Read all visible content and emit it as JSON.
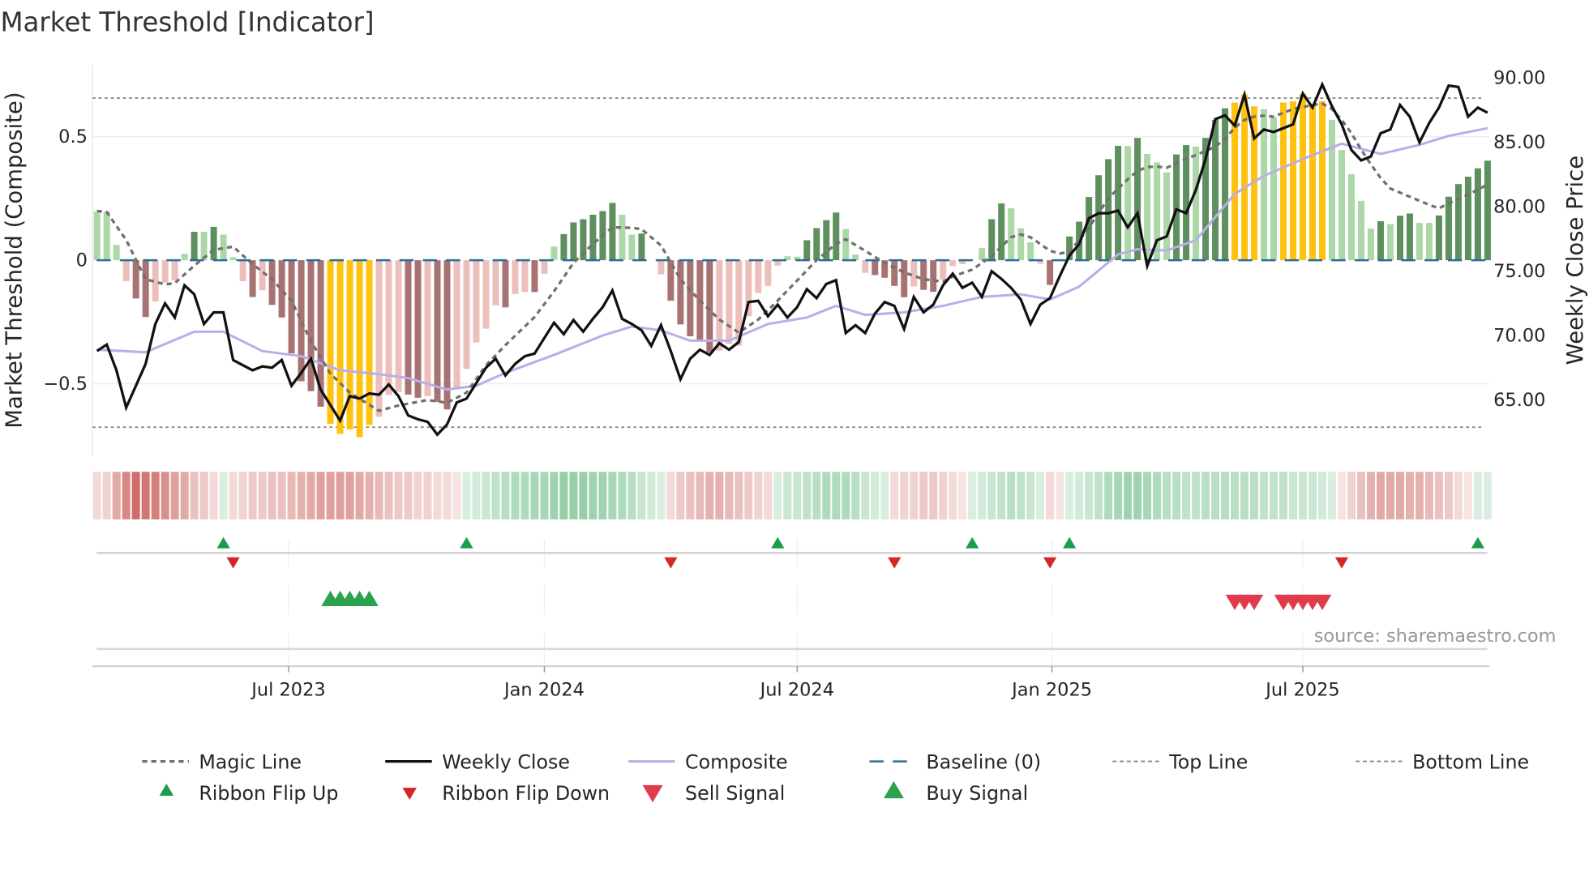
{
  "chart_data": {
    "type": "bar",
    "title": "Market Threshold [Indicator]",
    "ylabel_left": "Market Threshold (Composite)",
    "ylabel_right": "Weekly Close Price",
    "source": "source: sharemaestro.com",
    "weeks": 144,
    "ylim_left": [
      -0.8,
      0.79
    ],
    "ylim_right": [
      59.5,
      91.5
    ],
    "yticks_left": [
      {
        "v": 0.5,
        "label": "0.5"
      },
      {
        "v": 0,
        "label": "0"
      },
      {
        "v": -0.5,
        "label": "−0.5"
      }
    ],
    "yticks_right": [
      {
        "v": 90,
        "label": "90.00"
      },
      {
        "v": 85,
        "label": "85.00"
      },
      {
        "v": 80,
        "label": "80.00"
      },
      {
        "v": 75,
        "label": "75.00"
      },
      {
        "v": 70,
        "label": "70.00"
      },
      {
        "v": 65,
        "label": "65.00"
      }
    ],
    "xticks": [
      {
        "week": 20.7,
        "label": "Jul 2023"
      },
      {
        "week": 47.0,
        "label": "Jan 2024"
      },
      {
        "week": 73.0,
        "label": "Jul 2024"
      },
      {
        "week": 99.2,
        "label": "Jan 2025"
      },
      {
        "week": 125.0,
        "label": "Jul 2025"
      }
    ],
    "top_line": 0.656,
    "bottom_line": -0.676,
    "baseline": 0,
    "colors": {
      "G": "#5e8f5e",
      "g": "#acd8a8",
      "R": "#a87272",
      "r": "#ecbfbb",
      "Y": "#ffc20e",
      "n": "#ffffff",
      "ribbon_up": "#4dae6b",
      "ribbon_down": "#c4504c",
      "flip_up": "#1a9c4a",
      "flip_down": "#d62728",
      "buy": "#2ca24c",
      "sell": "#e03b4b",
      "magic": "#707070",
      "close": "#111111",
      "composite": "#b9aee8",
      "baseline": "#2b6e96",
      "limits": "#8a8a8a"
    },
    "composite_bars": [
      0.197,
      0.197,
      0.062,
      -0.085,
      -0.155,
      -0.23,
      -0.167,
      -0.09,
      -0.082,
      0.026,
      0.115,
      0.115,
      0.135,
      0.104,
      0.012,
      -0.085,
      -0.149,
      -0.122,
      -0.181,
      -0.232,
      -0.377,
      -0.49,
      -0.53,
      -0.593,
      -0.663,
      -0.703,
      -0.685,
      -0.716,
      -0.667,
      -0.634,
      -0.546,
      -0.533,
      -0.544,
      -0.557,
      -0.55,
      -0.574,
      -0.604,
      -0.517,
      -0.44,
      -0.333,
      -0.277,
      -0.183,
      -0.191,
      -0.137,
      -0.129,
      -0.129,
      -0.055,
      0.055,
      0.106,
      0.153,
      0.166,
      0.184,
      0.199,
      0.232,
      0.184,
      0.104,
      0.108,
      0,
      -0.057,
      -0.164,
      -0.26,
      -0.308,
      -0.326,
      -0.372,
      -0.366,
      -0.339,
      -0.346,
      -0.227,
      -0.133,
      -0.104,
      -0.022,
      0.016,
      0.014,
      0.081,
      0.13,
      0.162,
      0.193,
      0.127,
      0.023,
      -0.051,
      -0.06,
      -0.071,
      -0.104,
      -0.15,
      -0.106,
      -0.12,
      -0.128,
      -0.079,
      -0.024,
      -0.016,
      0,
      0.049,
      0.166,
      0.23,
      0.21,
      0.129,
      0.072,
      -0.014,
      -0.1,
      0,
      0.096,
      0.156,
      0.256,
      0.344,
      0.409,
      0.463,
      0.462,
      0.495,
      0.43,
      0.396,
      0.356,
      0.428,
      0.466,
      0.46,
      0.495,
      0.568,
      0.615,
      0.638,
      0.671,
      0.623,
      0.611,
      0.579,
      0.638,
      0.643,
      0.672,
      0.625,
      0.643,
      0.568,
      0.446,
      0.348,
      0.24,
      0.128,
      0.158,
      0.146,
      0.18,
      0.189,
      0.151,
      0.151,
      0.181,
      0.257,
      0.308,
      0.338,
      0.372,
      0.403
    ],
    "bar_classes": "gggrRRrrrgGgGggrRrRRRRRRYYYYYrrrRRrRRrrrrrRrrRrgGGGGGGggGnrRRRRRrrrrrrrggGGGGggrRRRRrRRrrrngGGgggrRnGGGGGGgGgggGGgGGGYYYggYYYYYgggggGgGGggGGGGGG",
    "weekly_close": [
      68.8,
      69.3,
      67.3,
      64.4,
      66.1,
      67.8,
      70.9,
      72.5,
      71.4,
      73.9,
      73.2,
      70.9,
      71.8,
      71.8,
      68.1,
      67.7,
      67.3,
      67.6,
      67.5,
      68.1,
      66.1,
      67.1,
      68.2,
      65.8,
      64.6,
      63.4,
      65.3,
      65.1,
      65.5,
      65.4,
      66.2,
      65.3,
      63.8,
      63.5,
      63.3,
      62.3,
      63.1,
      64.8,
      65.1,
      66.3,
      67.5,
      68.2,
      66.9,
      67.8,
      68.4,
      68.6,
      69.8,
      71.0,
      70.1,
      71.2,
      70.3,
      71.3,
      72.2,
      73.5,
      71.3,
      70.9,
      70.4,
      69.2,
      70.8,
      68.8,
      66.6,
      68.2,
      68.9,
      68.5,
      69.4,
      68.9,
      69.5,
      72.6,
      72.7,
      71.5,
      72.4,
      71.4,
      72.2,
      73.6,
      72.9,
      74.0,
      74.3,
      70.2,
      70.8,
      70.2,
      71.7,
      72.6,
      72.3,
      70.5,
      73.0,
      71.8,
      72.4,
      73.9,
      74.8,
      73.7,
      74.1,
      73.0,
      75.0,
      74.4,
      73.7,
      72.8,
      70.9,
      72.4,
      72.9,
      74.6,
      76.2,
      77.1,
      79.1,
      79.5,
      79.5,
      79.7,
      78.4,
      79.5,
      75.4,
      77.4,
      77.7,
      79.8,
      79.5,
      81.3,
      83.7,
      86.8,
      87.1,
      86.3,
      88.7,
      85.3,
      86.0,
      85.8,
      86.1,
      86.4,
      88.8,
      87.7,
      89.5,
      87.8,
      86.4,
      84.4,
      83.6,
      83.9,
      85.7,
      86.0,
      87.9,
      87.0,
      85.0,
      86.5,
      87.7,
      89.4,
      89.3,
      87.0,
      87.7,
      87.3
    ],
    "magic_line": [
      [
        1,
        0.199
      ],
      [
        2,
        0.195
      ],
      [
        4,
        0.082
      ],
      [
        6,
        -0.077
      ],
      [
        8,
        -0.098
      ],
      [
        9,
        -0.093
      ],
      [
        11,
        -0.022
      ],
      [
        13,
        0.042
      ],
      [
        15,
        0.055
      ],
      [
        17,
        -0.016
      ],
      [
        19,
        -0.077
      ],
      [
        21,
        -0.164
      ],
      [
        23,
        -0.328
      ],
      [
        25,
        -0.459
      ],
      [
        27,
        -0.536
      ],
      [
        30,
        -0.61
      ],
      [
        32,
        -0.588
      ],
      [
        35,
        -0.566
      ],
      [
        37,
        -0.577
      ],
      [
        39,
        -0.536
      ],
      [
        41,
        -0.426
      ],
      [
        43,
        -0.344
      ],
      [
        46,
        -0.23
      ],
      [
        48,
        -0.126
      ],
      [
        50,
        -0.011
      ],
      [
        52,
        0.066
      ],
      [
        54,
        0.133
      ],
      [
        56,
        0.131
      ],
      [
        57,
        0.126
      ],
      [
        59,
        0.06
      ],
      [
        61,
        -0.077
      ],
      [
        63,
        -0.164
      ],
      [
        65,
        -0.24
      ],
      [
        67,
        -0.293
      ],
      [
        69,
        -0.24
      ],
      [
        71,
        -0.164
      ],
      [
        73,
        -0.082
      ],
      [
        75,
        0
      ],
      [
        77,
        0.066
      ],
      [
        78,
        0.085
      ],
      [
        80,
        0.038
      ],
      [
        82,
        -0.011
      ],
      [
        84,
        -0.049
      ],
      [
        86,
        -0.077
      ],
      [
        88,
        -0.087
      ],
      [
        89,
        -0.066
      ],
      [
        91,
        -0.038
      ],
      [
        93,
        0.016
      ],
      [
        95,
        0.093
      ],
      [
        96,
        0.104
      ],
      [
        97,
        0.093
      ],
      [
        99,
        0.038
      ],
      [
        100,
        0.027
      ],
      [
        101,
        0.033
      ],
      [
        103,
        0.131
      ],
      [
        105,
        0.251
      ],
      [
        107,
        0.328
      ],
      [
        108,
        0.361
      ],
      [
        109,
        0.377
      ],
      [
        110,
        0.379
      ],
      [
        111,
        0.374
      ],
      [
        112,
        0.393
      ],
      [
        114,
        0.426
      ],
      [
        116,
        0.459
      ],
      [
        117,
        0.492
      ],
      [
        118,
        0.536
      ],
      [
        119,
        0.568
      ],
      [
        120,
        0.581
      ],
      [
        121,
        0.585
      ],
      [
        122,
        0.581
      ],
      [
        124,
        0.612
      ],
      [
        126,
        0.628
      ],
      [
        127,
        0.634
      ],
      [
        128,
        0.612
      ],
      [
        129,
        0.568
      ],
      [
        130,
        0.514
      ],
      [
        131,
        0.448
      ],
      [
        132,
        0.388
      ],
      [
        133,
        0.333
      ],
      [
        134,
        0.29
      ],
      [
        136,
        0.257
      ],
      [
        138,
        0.224
      ],
      [
        139,
        0.21
      ],
      [
        140,
        0.23
      ],
      [
        142,
        0.265
      ],
      [
        144,
        0.306
      ]
    ],
    "composite_line": [
      [
        1,
        68.9
      ],
      [
        6,
        68.7
      ],
      [
        11,
        70.3
      ],
      [
        14,
        70.3
      ],
      [
        18,
        68.8
      ],
      [
        22,
        68.4
      ],
      [
        26,
        67.3
      ],
      [
        30,
        67.0
      ],
      [
        33,
        66.7
      ],
      [
        37,
        65.8
      ],
      [
        40,
        66.1
      ],
      [
        43,
        67.1
      ],
      [
        48,
        68.5
      ],
      [
        53,
        70.0
      ],
      [
        56,
        70.7
      ],
      [
        59,
        70.4
      ],
      [
        62,
        69.6
      ],
      [
        66,
        69.6
      ],
      [
        70,
        70.9
      ],
      [
        74,
        71.4
      ],
      [
        77,
        72.3
      ],
      [
        80,
        71.6
      ],
      [
        84,
        71.8
      ],
      [
        88,
        72.3
      ],
      [
        92,
        73.0
      ],
      [
        96,
        73.2
      ],
      [
        99,
        72.8
      ],
      [
        102,
        73.8
      ],
      [
        106,
        76.3
      ],
      [
        108,
        76.7
      ],
      [
        111,
        76.6
      ],
      [
        114,
        77.4
      ],
      [
        118,
        81.0
      ],
      [
        121,
        82.4
      ],
      [
        125,
        83.7
      ],
      [
        129,
        84.9
      ],
      [
        133,
        84.1
      ],
      [
        137,
        84.8
      ],
      [
        140,
        85.5
      ],
      [
        144,
        86.1
      ]
    ],
    "ribbon": [
      -0.2,
      -0.25,
      -0.5,
      -0.7,
      -0.85,
      -0.8,
      -0.75,
      -0.65,
      -0.55,
      -0.5,
      -0.35,
      -0.3,
      -0.2,
      0.2,
      -0.2,
      -0.25,
      -0.3,
      -0.3,
      -0.35,
      -0.35,
      -0.4,
      -0.45,
      -0.5,
      -0.55,
      -0.55,
      -0.55,
      -0.55,
      -0.5,
      -0.45,
      -0.4,
      -0.35,
      -0.3,
      -0.3,
      -0.25,
      -0.25,
      -0.2,
      -0.2,
      -0.15,
      0.2,
      0.25,
      0.3,
      0.35,
      0.4,
      0.45,
      0.45,
      0.5,
      0.5,
      0.55,
      0.6,
      0.6,
      0.6,
      0.55,
      0.55,
      0.5,
      0.45,
      0.4,
      0.3,
      0.25,
      0.2,
      -0.2,
      -0.3,
      -0.35,
      -0.4,
      -0.45,
      -0.45,
      -0.4,
      -0.35,
      -0.3,
      -0.25,
      -0.2,
      0.2,
      0.3,
      0.3,
      0.35,
      0.4,
      0.45,
      0.45,
      0.45,
      0.4,
      0.3,
      0.25,
      0.2,
      -0.2,
      -0.25,
      -0.25,
      -0.3,
      -0.3,
      -0.25,
      -0.2,
      -0.15,
      0.2,
      0.25,
      0.3,
      0.35,
      0.4,
      0.35,
      0.3,
      0.2,
      -0.2,
      -0.15,
      0.2,
      0.25,
      0.3,
      0.35,
      0.45,
      0.5,
      0.55,
      0.55,
      0.5,
      0.45,
      0.4,
      0.4,
      0.35,
      0.35,
      0.4,
      0.4,
      0.4,
      0.4,
      0.4,
      0.4,
      0.35,
      0.35,
      0.35,
      0.3,
      0.3,
      0.3,
      0.25,
      0.2,
      -0.15,
      -0.25,
      -0.35,
      -0.45,
      -0.5,
      -0.5,
      -0.5,
      -0.45,
      -0.45,
      -0.4,
      -0.35,
      -0.3,
      -0.2,
      -0.15,
      0.2,
      0.2
    ],
    "ribbon_flip_up_weeks": [
      14,
      39,
      71,
      91,
      101,
      143
    ],
    "ribbon_flip_down_weeks": [
      15,
      60,
      83,
      99,
      129
    ],
    "buy_signal_weeks": [
      25,
      26,
      27,
      28,
      29
    ],
    "sell_signal_weeks": [
      118,
      119,
      120,
      123,
      124,
      125,
      126,
      127
    ],
    "legend": [
      {
        "label": "Magic Line",
        "kind": "magic"
      },
      {
        "label": "Weekly Close",
        "kind": "close"
      },
      {
        "label": "Composite",
        "kind": "composite"
      },
      {
        "label": "Baseline (0)",
        "kind": "baseline"
      },
      {
        "label": "Top Line",
        "kind": "limit"
      },
      {
        "label": "Bottom Line",
        "kind": "limit"
      },
      {
        "label": "Ribbon Flip Up",
        "kind": "flip_up"
      },
      {
        "label": "Ribbon Flip Down",
        "kind": "flip_down"
      },
      {
        "label": "Sell Signal",
        "kind": "sell"
      },
      {
        "label": "Buy Signal",
        "kind": "buy"
      }
    ],
    "legend_placement": "bottom"
  }
}
